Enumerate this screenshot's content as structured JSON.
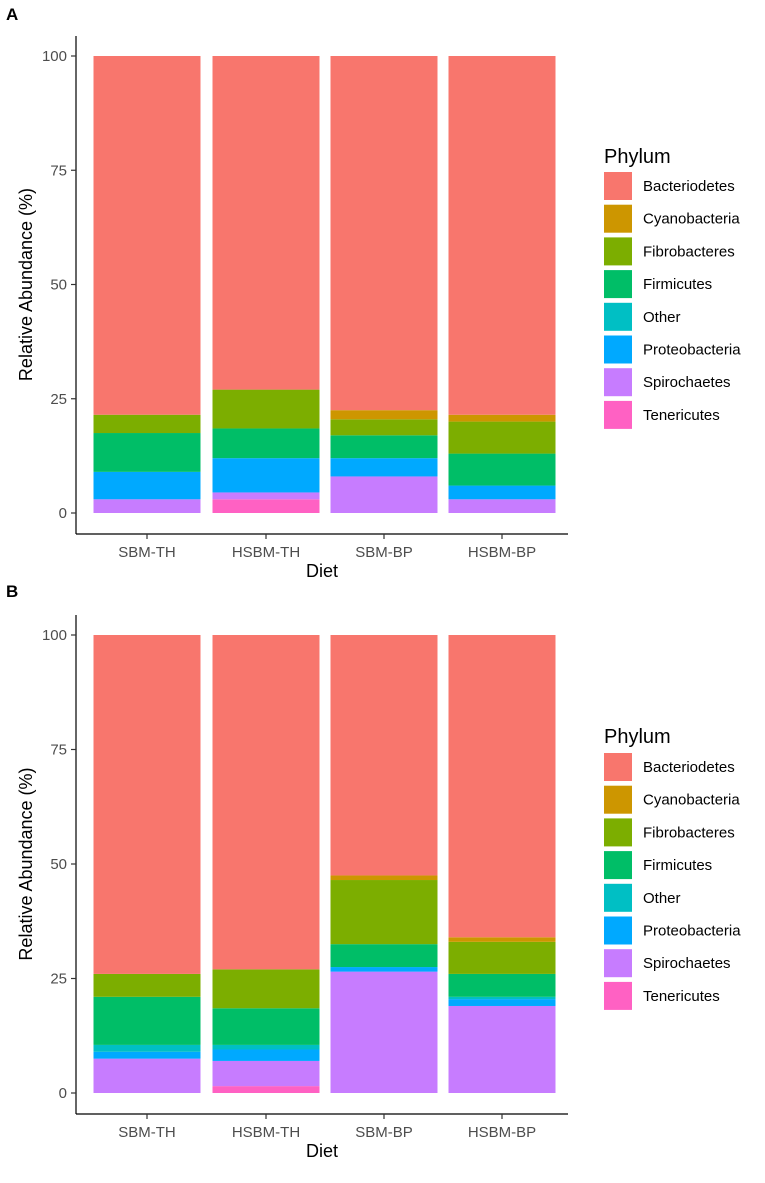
{
  "chart_data": [
    {
      "panel": "A",
      "type": "bar",
      "stacked": true,
      "xlabel": "Diet",
      "ylabel": "Relative Abundance (%)",
      "ylim": [
        0,
        100
      ],
      "yticks": [
        0,
        25,
        50,
        75,
        100
      ],
      "categories": [
        "SBM-TH",
        "HSBM-TH",
        "SBM-BP",
        "HSBM-BP"
      ],
      "legend_title": "Phylum",
      "series": [
        {
          "name": "Tenericutes",
          "color": "#FF61C3",
          "values": [
            0,
            3,
            0,
            0
          ]
        },
        {
          "name": "Spirochaetes",
          "color": "#C77CFF",
          "values": [
            3,
            1.5,
            8,
            3
          ]
        },
        {
          "name": "Proteobacteria",
          "color": "#00A9FF",
          "values": [
            6,
            7.5,
            4,
            3
          ]
        },
        {
          "name": "Other",
          "color": "#00BFC4",
          "values": [
            0,
            0,
            0,
            0
          ]
        },
        {
          "name": "Firmicutes",
          "color": "#00BE67",
          "values": [
            8.5,
            6.5,
            5,
            7
          ]
        },
        {
          "name": "Fibrobacteres",
          "color": "#7CAE00",
          "values": [
            4,
            8.5,
            3.5,
            7
          ]
        },
        {
          "name": "Cyanobacteria",
          "color": "#CD9600",
          "values": [
            0,
            0,
            2,
            1.5
          ]
        },
        {
          "name": "Bacteriodetes",
          "color": "#F8766D",
          "values": [
            78.5,
            73,
            77.5,
            78.5
          ]
        }
      ]
    },
    {
      "panel": "B",
      "type": "bar",
      "stacked": true,
      "xlabel": "Diet",
      "ylabel": "Relative Abundance (%)",
      "ylim": [
        0,
        100
      ],
      "yticks": [
        0,
        25,
        50,
        75,
        100
      ],
      "categories": [
        "SBM-TH",
        "HSBM-TH",
        "SBM-BP",
        "HSBM-BP"
      ],
      "legend_title": "Phylum",
      "series": [
        {
          "name": "Tenericutes",
          "color": "#FF61C3",
          "values": [
            0,
            1.5,
            0,
            0
          ]
        },
        {
          "name": "Spirochaetes",
          "color": "#C77CFF",
          "values": [
            7.5,
            5.5,
            26.5,
            19
          ]
        },
        {
          "name": "Proteobacteria",
          "color": "#00A9FF",
          "values": [
            1.5,
            2.5,
            1,
            1.5
          ]
        },
        {
          "name": "Other",
          "color": "#00BFC4",
          "values": [
            1.5,
            1,
            0,
            0.5
          ]
        },
        {
          "name": "Firmicutes",
          "color": "#00BE67",
          "values": [
            10.5,
            8,
            5,
            5
          ]
        },
        {
          "name": "Fibrobacteres",
          "color": "#7CAE00",
          "values": [
            5,
            8.5,
            14,
            7
          ]
        },
        {
          "name": "Cyanobacteria",
          "color": "#CD9600",
          "values": [
            0,
            0,
            1,
            1
          ]
        },
        {
          "name": "Bacteriodetes",
          "color": "#F8766D",
          "values": [
            74,
            73,
            52.5,
            66
          ]
        }
      ]
    }
  ]
}
